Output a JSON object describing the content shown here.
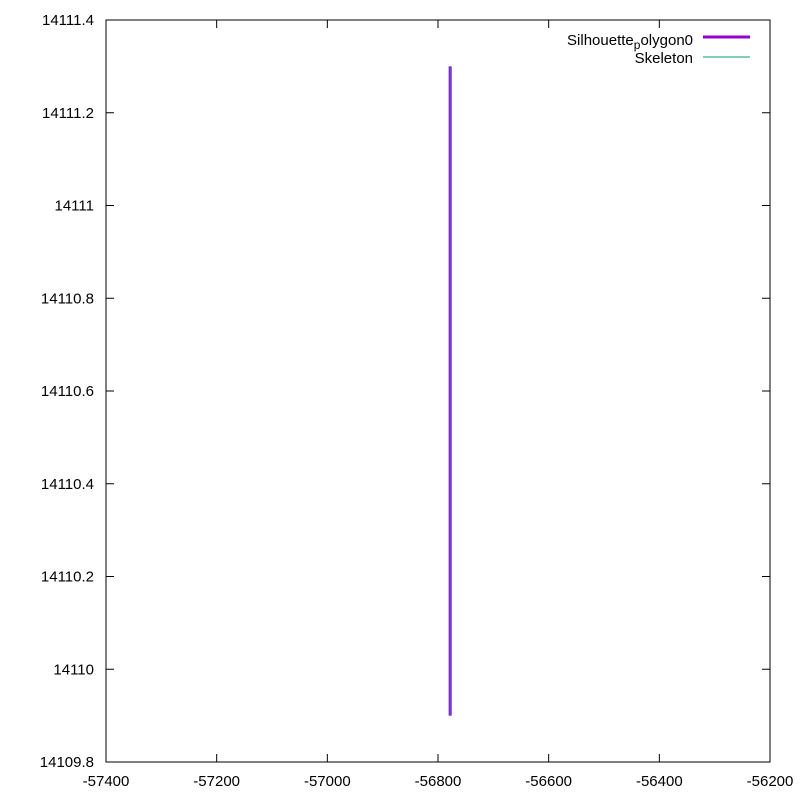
{
  "chart_data": {
    "type": "line",
    "title": "",
    "xlabel": "",
    "ylabel": "",
    "xlim": [
      -57400,
      -56200
    ],
    "ylim": [
      14109.8,
      14111.4
    ],
    "x_ticks": [
      -57400,
      -57200,
      -57000,
      -56800,
      -56600,
      -56400,
      -56200
    ],
    "x_tick_labels": [
      "-57400",
      "-57200",
      "-57000",
      "-56800",
      "-56600",
      "-56400",
      "-56200"
    ],
    "y_ticks": [
      14109.8,
      14110,
      14110.2,
      14110.4,
      14110.6,
      14110.8,
      14111,
      14111.2,
      14111.4
    ],
    "y_tick_labels": [
      "14109.8",
      "14110",
      "14110.2",
      "14110.4",
      "14110.6",
      "14110.8",
      "14111",
      "14111.2",
      "14111.4"
    ],
    "grid": false,
    "legend_position": "top-right",
    "legend": {
      "silhouette_name": "Silhouette",
      "silhouette_subscript": "p",
      "silhouette_suffix": "olygon0",
      "skeleton_name": "Skeleton"
    },
    "series": [
      {
        "key": "silhouette",
        "color": "#9400d3",
        "points": [
          [
            -56778,
            14109.9
          ],
          [
            -56778,
            14111.3
          ]
        ]
      },
      {
        "key": "skeleton",
        "color": "#009e73",
        "points": [
          [
            -56778,
            14109.9
          ],
          [
            -56778,
            14111.3
          ]
        ]
      }
    ],
    "overlay_color": "#4a5fd6"
  }
}
